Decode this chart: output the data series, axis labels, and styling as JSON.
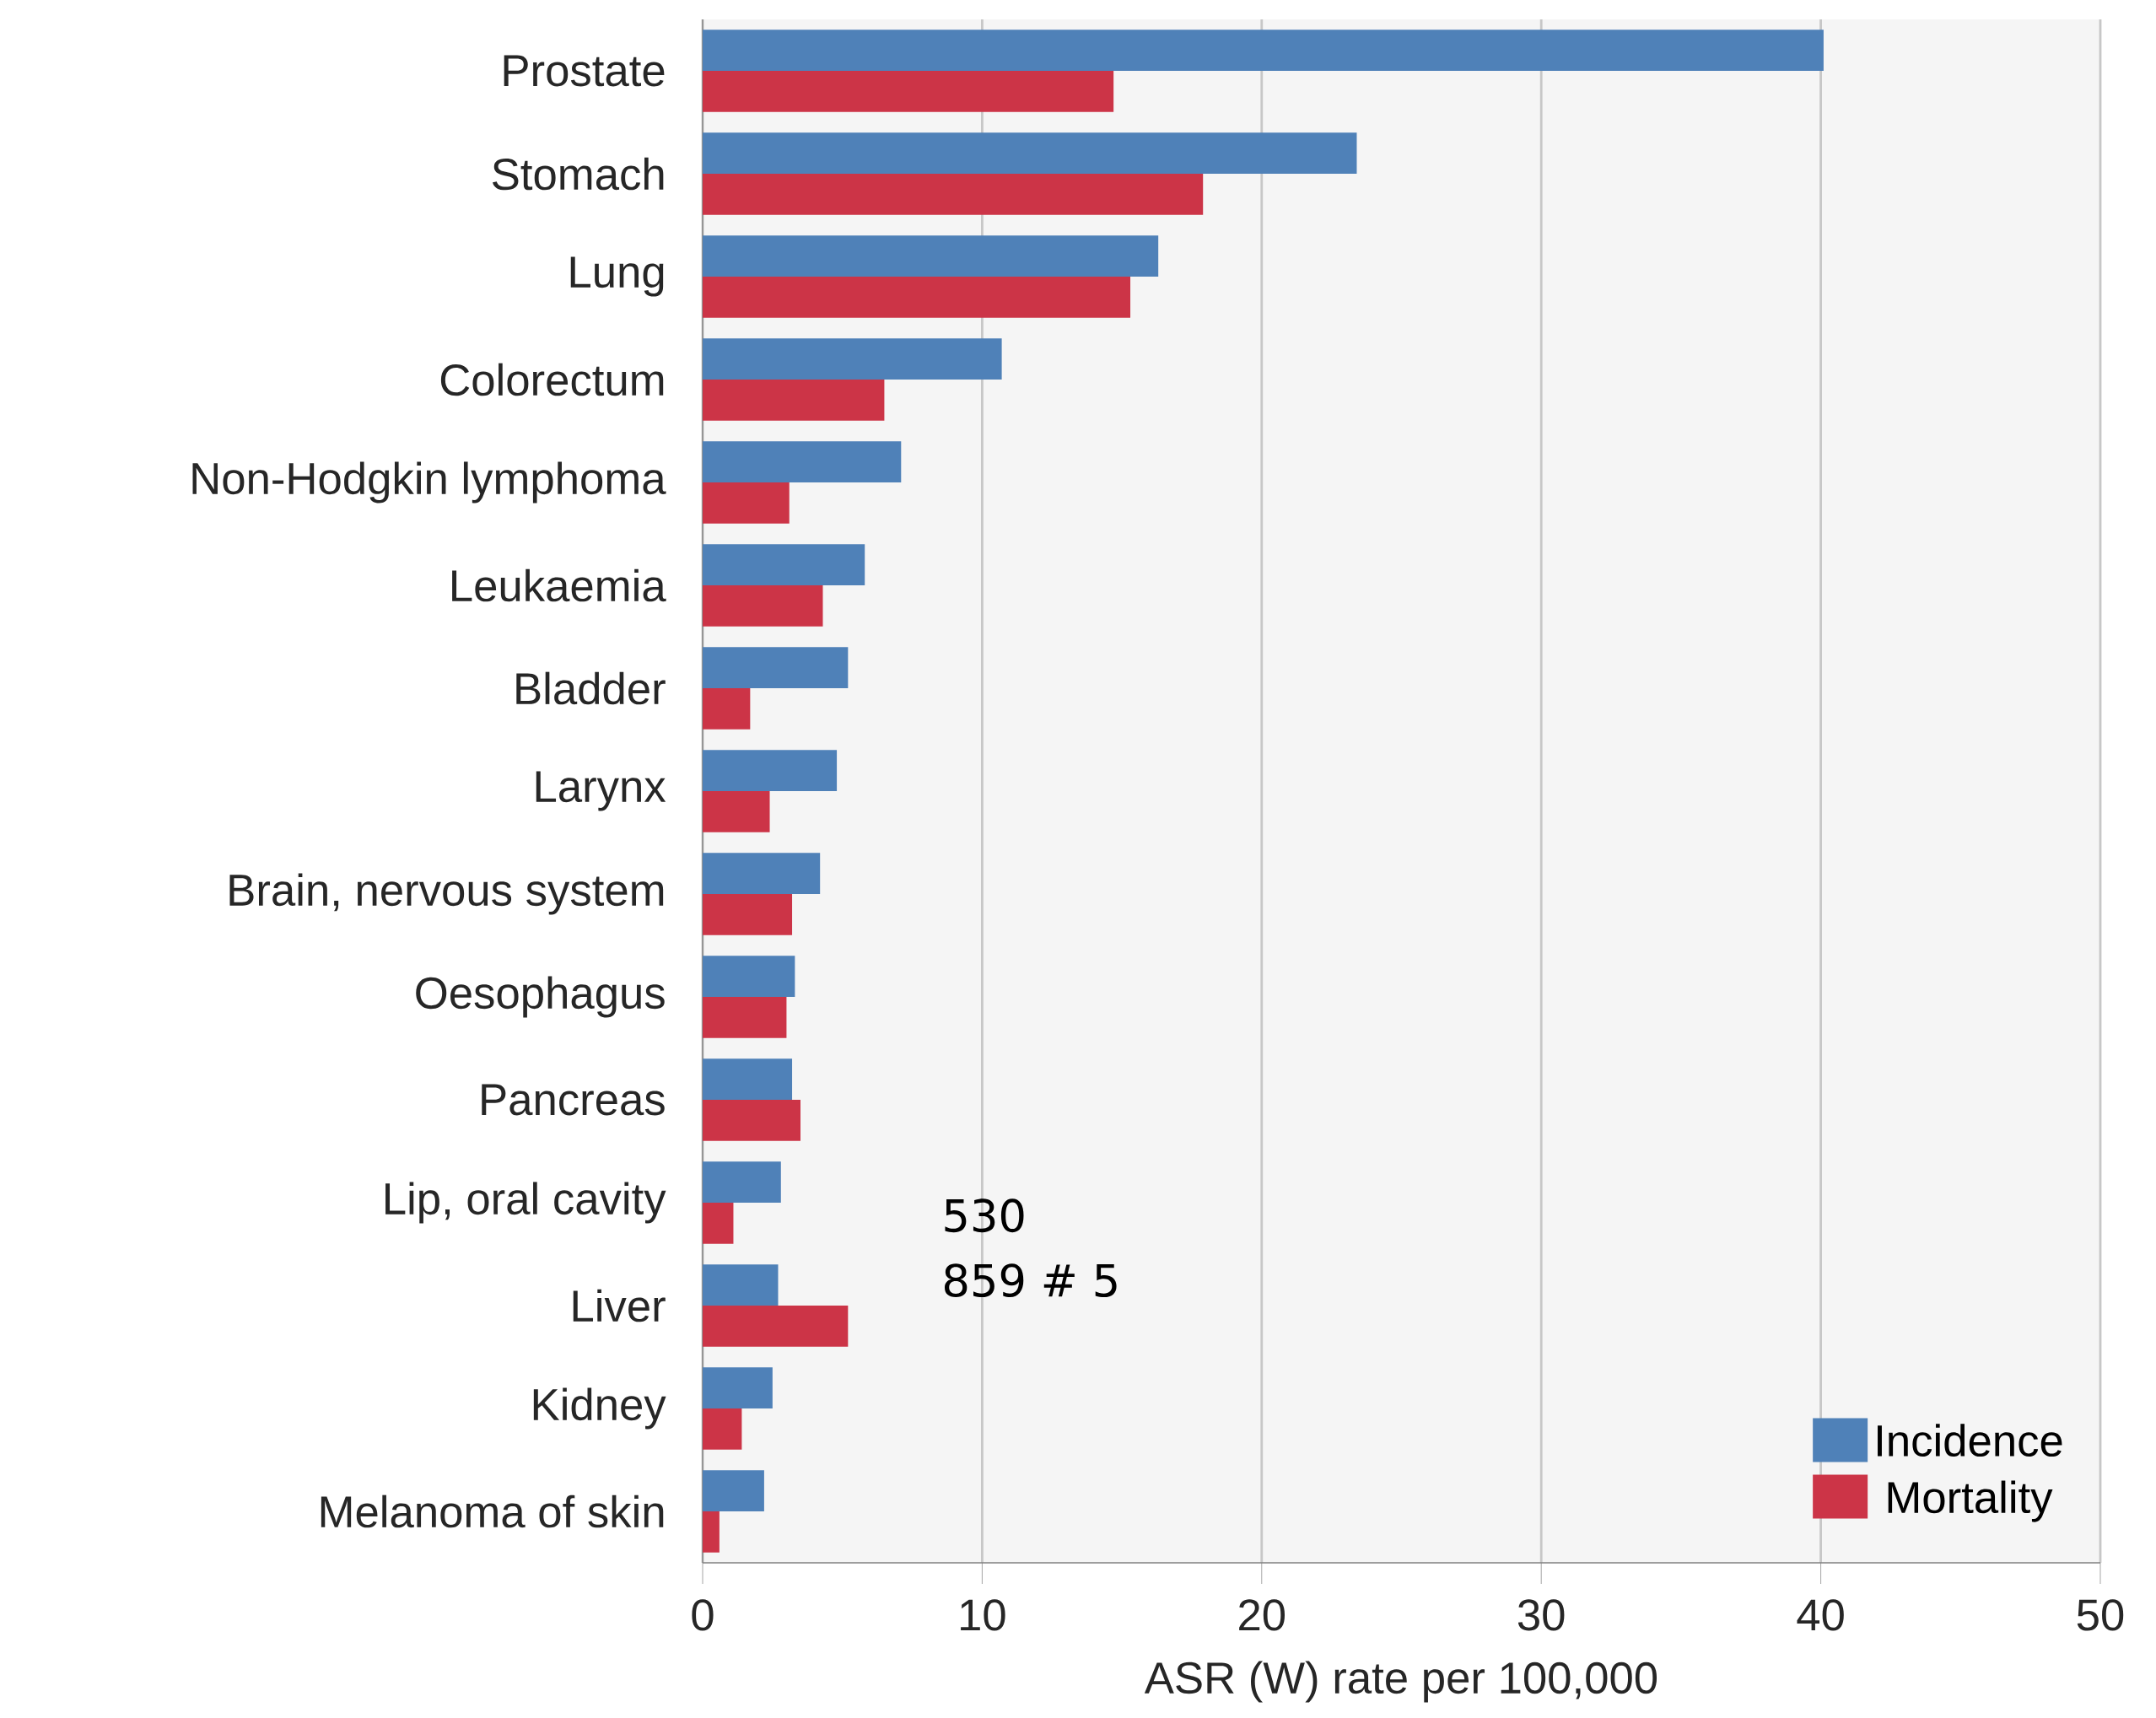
{
  "chart_data": {
    "type": "bar",
    "orientation": "horizontal",
    "xlabel": "ASR (W) rate per 100,000",
    "categories": [
      "Prostate",
      "Stomach",
      "Lung",
      "Colorectum",
      "Non-Hodgkin lymphoma",
      "Leukaemia",
      "Bladder",
      "Larynx",
      "Brain, nervous system",
      "Oesophagus",
      "Pancreas",
      "Lip, oral cavity",
      "Liver",
      "Kidney",
      "Melanoma of skin"
    ],
    "series": [
      {
        "name": "Incidence",
        "color": "#4f81b8",
        "values": [
          40.1,
          23.4,
          16.3,
          10.7,
          7.1,
          5.8,
          5.2,
          4.8,
          4.2,
          3.3,
          3.2,
          2.8,
          2.7,
          2.5,
          2.2
        ]
      },
      {
        "name": "Mortality",
        "color": "#cc3447",
        "values": [
          14.7,
          17.9,
          15.3,
          6.5,
          3.1,
          4.3,
          1.7,
          2.4,
          3.2,
          3.0,
          3.5,
          1.1,
          5.2,
          1.4,
          0.6
        ]
      }
    ],
    "xlim": [
      0,
      50
    ],
    "xticks": [
      0,
      10,
      20,
      30,
      40,
      50
    ],
    "grid": "x",
    "legend": "bottom right",
    "annotations": [
      "530",
      "859 # 5"
    ]
  }
}
